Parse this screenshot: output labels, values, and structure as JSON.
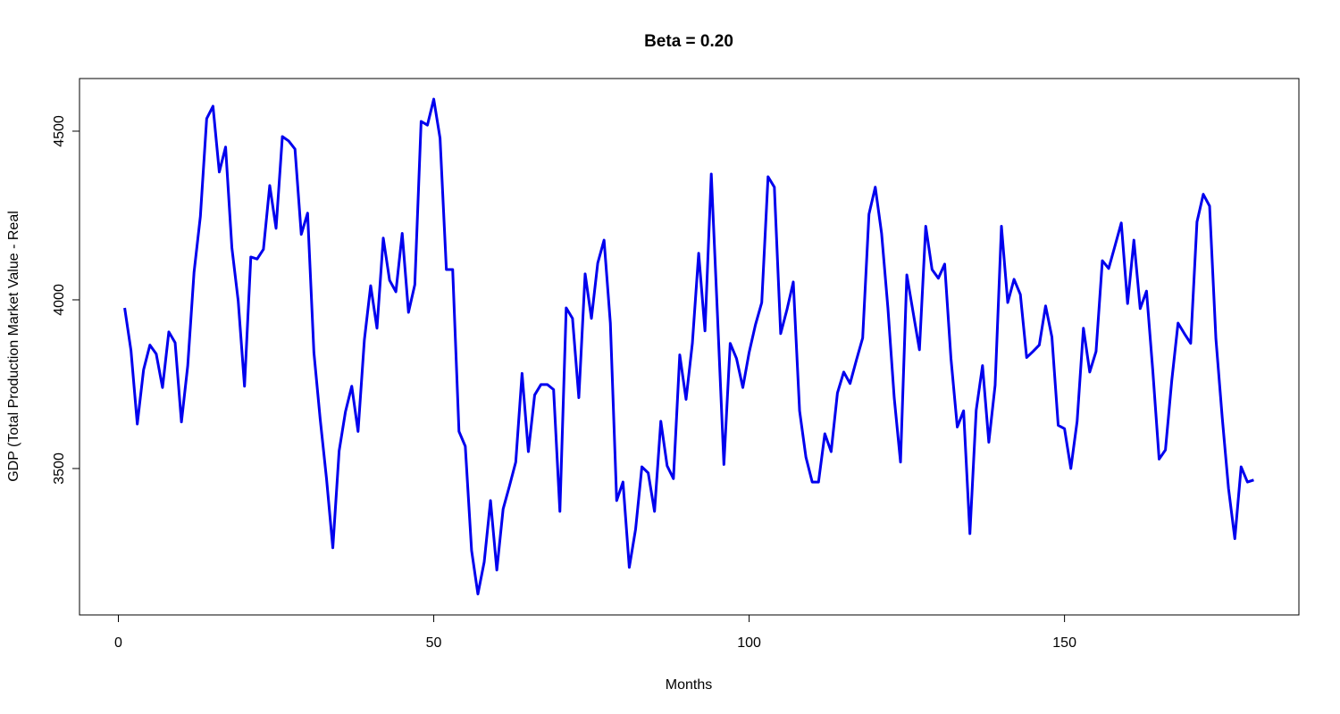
{
  "chart_data": {
    "type": "line",
    "title": "Beta = 0.20",
    "xlabel": "Months",
    "ylabel": "GDP (Total Production Market Value - Real",
    "x": [
      1,
      2,
      3,
      4,
      5,
      6,
      7,
      8,
      9,
      10,
      11,
      12,
      13,
      14,
      15,
      16,
      17,
      18,
      19,
      20,
      21,
      22,
      23,
      24,
      25,
      26,
      27,
      28,
      29,
      30,
      31,
      32,
      33,
      34,
      35,
      36,
      37,
      38,
      39,
      40,
      41,
      42,
      43,
      44,
      45,
      46,
      47,
      48,
      49,
      50,
      51,
      52,
      53,
      54,
      55,
      56,
      57,
      58,
      59,
      60,
      61,
      62,
      63,
      64,
      65,
      66,
      67,
      68,
      69,
      70,
      71,
      72,
      73,
      74,
      75,
      76,
      77,
      78,
      79,
      80,
      81,
      82,
      83,
      84,
      85,
      86,
      87,
      88,
      89,
      90,
      91,
      92,
      93,
      94,
      95,
      96,
      97,
      98,
      99,
      100,
      101,
      102,
      103,
      104,
      105,
      106,
      107,
      108,
      109,
      110,
      111,
      112,
      113,
      114,
      115,
      116,
      117,
      118,
      119,
      120,
      121,
      122,
      123,
      124,
      125,
      126,
      127,
      128,
      129,
      130,
      131,
      132,
      133,
      134,
      135,
      136,
      137,
      138,
      139,
      140,
      141,
      142,
      143,
      144,
      145,
      146,
      147,
      148,
      149,
      150,
      151,
      152,
      153,
      154,
      155,
      156,
      157,
      158,
      159,
      160,
      161,
      162,
      163,
      164,
      165,
      166,
      167,
      168,
      169,
      170,
      171,
      172,
      173,
      174,
      175,
      176,
      177,
      178,
      179,
      180
    ],
    "values": [
      3976,
      3850,
      3632,
      3793,
      3866,
      3840,
      3740,
      3905,
      3873,
      3638,
      3805,
      4082,
      4247,
      4537,
      4574,
      4379,
      4453,
      4154,
      3997,
      3744,
      4127,
      4121,
      4150,
      4339,
      4212,
      4484,
      4471,
      4447,
      4194,
      4257,
      3844,
      3646,
      3470,
      3265,
      3552,
      3668,
      3744,
      3610,
      3881,
      4042,
      3916,
      4183,
      4058,
      4024,
      4197,
      3963,
      4045,
      4529,
      4518,
      4595,
      4479,
      4090,
      4090,
      3610,
      3566,
      3257,
      3128,
      3223,
      3405,
      3199,
      3380,
      3448,
      3519,
      3782,
      3550,
      3718,
      3749,
      3749,
      3734,
      3373,
      3976,
      3945,
      3710,
      4077,
      3945,
      4109,
      4177,
      3931,
      3405,
      3460,
      3207,
      3320,
      3505,
      3487,
      3373,
      3640,
      3508,
      3470,
      3837,
      3705,
      3871,
      4138,
      3908,
      4373,
      3947,
      3512,
      3871,
      3826,
      3740,
      3844,
      3926,
      3992,
      4365,
      4334,
      3900,
      3971,
      4053,
      3671,
      3534,
      3460,
      3460,
      3603,
      3550,
      3724,
      3786,
      3752,
      3821,
      3887,
      4254,
      4334,
      4197,
      3976,
      3710,
      3519,
      4074,
      3963,
      3852,
      4218,
      4090,
      4064,
      4106,
      3826,
      3623,
      3671,
      3307,
      3673,
      3805,
      3578,
      3747,
      4218,
      3992,
      4061,
      4016,
      3829,
      3847,
      3866,
      3982,
      3890,
      3628,
      3618,
      3500,
      3640,
      3916,
      3786,
      3847,
      4116,
      4093,
      4160,
      4228,
      3989,
      4177,
      3974,
      4026,
      3789,
      3528,
      3555,
      3760,
      3931,
      3900,
      3871,
      4231,
      4313,
      4278,
      3885,
      3652,
      3441,
      3292,
      3505,
      3460,
      3466
    ],
    "color": "#0000ee",
    "xlim": [
      -6.16,
      187.16
    ],
    "ylim": [
      3066,
      4656
    ],
    "xticks": [
      0,
      50,
      100,
      150
    ],
    "yticks": [
      3500,
      4000,
      4500
    ],
    "grid": false
  }
}
